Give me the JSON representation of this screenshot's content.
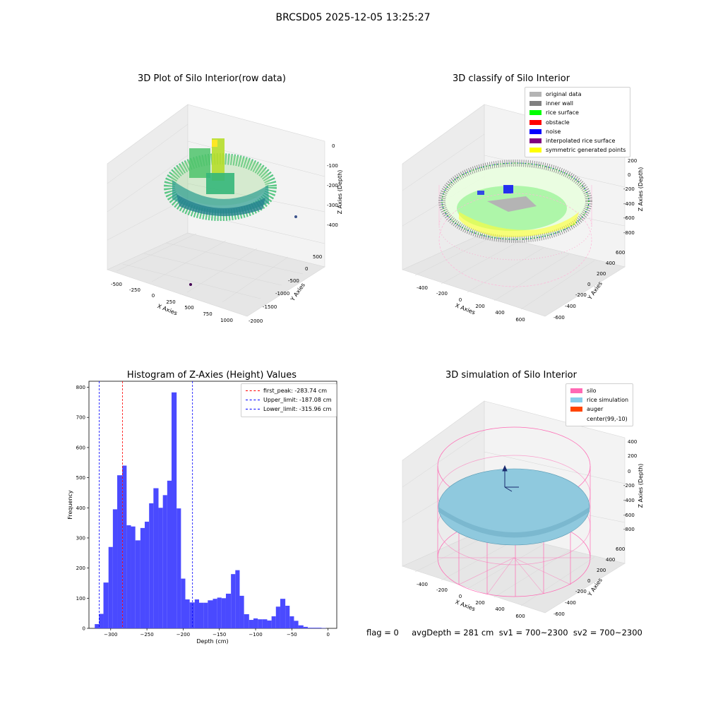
{
  "suptitle": "BRCSD05 2025-12-05 13:25:27",
  "panels": {
    "raw": {
      "title": "3D Plot of Silo Interior(row data)",
      "xlabel": "X Axies",
      "ylabel": "Y Axies",
      "zlabel": "Z Axies (Depth)",
      "xticks": [
        "-500",
        "-250",
        "0",
        "250",
        "500",
        "750",
        "1000"
      ],
      "yticks": [
        "500",
        "0",
        "-500",
        "-1000",
        "-1500",
        "-2000"
      ],
      "zticks": [
        "0",
        "-100",
        "-200",
        "-300",
        "-400"
      ]
    },
    "classify": {
      "title": "3D classify of Silo Interior",
      "xlabel": "X Axies",
      "ylabel": "Y Axies",
      "zlabel": "Z Axies (Depth)",
      "xticks": [
        "-400",
        "-200",
        "0",
        "200",
        "400",
        "600"
      ],
      "yticks": [
        "600",
        "400",
        "200",
        "0",
        "-200",
        "-400",
        "-600"
      ],
      "zticks": [
        "200",
        "0",
        "-200",
        "-400",
        "-600",
        "-800"
      ],
      "legend": [
        {
          "label": "original data",
          "color": "#b4b4b4"
        },
        {
          "label": "inner wall",
          "color": "#808080"
        },
        {
          "label": "rice surface",
          "color": "#00ff00"
        },
        {
          "label": "obstacle",
          "color": "#ff0000"
        },
        {
          "label": "noise",
          "color": "#0000ff"
        },
        {
          "label": "interpolated rice surface",
          "color": "#800080"
        },
        {
          "label": "symmetric generated points",
          "color": "#ffff00"
        }
      ]
    },
    "simulation": {
      "title": "3D simulation of Silo Interior",
      "xlabel": "X Axies",
      "ylabel": "Y Axies",
      "zlabel": "Z Axies (Depth)",
      "xticks": [
        "-400",
        "-200",
        "0",
        "200",
        "400",
        "600"
      ],
      "yticks": [
        "600",
        "400",
        "200",
        "0",
        "-200",
        "-400",
        "-600"
      ],
      "zticks": [
        "400",
        "200",
        "0",
        "-200",
        "-400",
        "-600",
        "-800"
      ],
      "legend": [
        {
          "label": "silo",
          "color": "#ff69b4"
        },
        {
          "label": "rice simulation",
          "color": "#87ceeb"
        },
        {
          "label": "auger",
          "color": "#ff4500"
        },
        {
          "label": "center(99,-10)",
          "color": "#ffffff"
        }
      ]
    }
  },
  "footer": {
    "text": "flag = 0     avgDepth = 281 cm  sv1 = 700~2300  sv2 = 700~2300"
  },
  "chart_data": [
    {
      "type": "bar",
      "title": "Histogram of Z-Axies (Height) Values",
      "xlabel": "Depth (cm)",
      "ylabel": "Frequency",
      "xlim": [
        -330,
        12
      ],
      "ylim": [
        0,
        820
      ],
      "xticks": [
        -300,
        -250,
        -200,
        -150,
        -100,
        -50,
        0
      ],
      "yticks": [
        0,
        100,
        200,
        300,
        400,
        500,
        600,
        700,
        800
      ],
      "bar_color": "#4a4aff",
      "bin_edges": [
        -322,
        -316,
        -310,
        -303,
        -297,
        -291,
        -284,
        -278,
        -272,
        -266,
        -259,
        -253,
        -247,
        -241,
        -234,
        -228,
        -222,
        -216,
        -209,
        -203,
        -197,
        -191,
        -184,
        -178,
        -172,
        -166,
        -159,
        -153,
        -147,
        -141,
        -134,
        -128,
        -122,
        -116,
        -109,
        -103,
        -97,
        -91,
        -84,
        -78,
        -72,
        -66,
        -59,
        -53,
        -47,
        -41,
        -34,
        -28,
        -22,
        -16,
        -9,
        -3
      ],
      "values": [
        14,
        48,
        152,
        270,
        395,
        508,
        540,
        342,
        338,
        292,
        333,
        354,
        415,
        465,
        400,
        442,
        490,
        783,
        398,
        165,
        96,
        86,
        96,
        85,
        85,
        93,
        98,
        102,
        100,
        115,
        180,
        193,
        108,
        47,
        28,
        33,
        30,
        30,
        26,
        40,
        72,
        98,
        75,
        40,
        25,
        10,
        5,
        2,
        2,
        2,
        1
      ],
      "vlines": [
        {
          "label": "first_peak: -283.74 cm",
          "x": -283.74,
          "color": "#ff0000"
        },
        {
          "label": "Upper_limit: -187.08 cm",
          "x": -187.08,
          "color": "#0000ff"
        },
        {
          "label": "Lower_limit: -315.96 cm",
          "x": -315.96,
          "color": "#0000ff"
        }
      ]
    }
  ]
}
